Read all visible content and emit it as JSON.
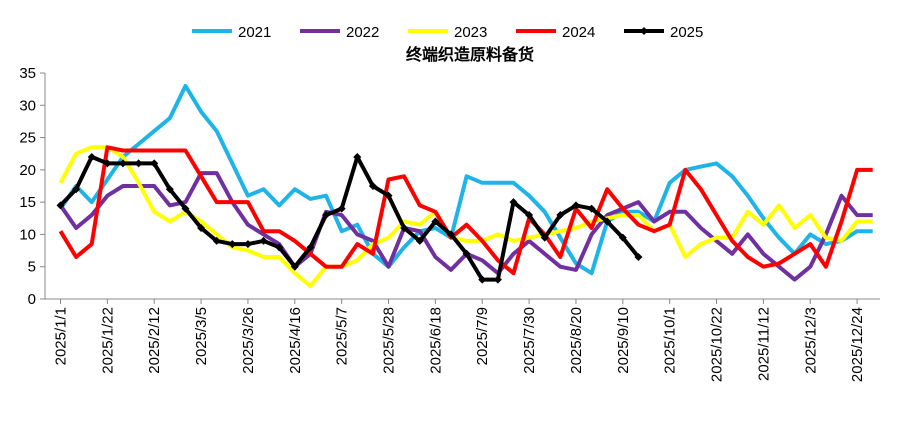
{
  "chart_data": {
    "type": "line",
    "title": "终端织造原料备货",
    "categories": [
      "2025/1/1",
      null,
      null,
      "2025/1/22",
      null,
      null,
      "2025/2/12",
      null,
      null,
      "2025/3/5",
      null,
      null,
      "2025/3/26",
      null,
      null,
      "2025/4/16",
      null,
      null,
      "2025/5/7",
      null,
      null,
      "2025/5/28",
      null,
      null,
      "2025/6/18",
      null,
      null,
      "2025/7/9",
      null,
      null,
      "2025/7/30",
      null,
      null,
      "2025/8/20",
      null,
      null,
      "2025/9/10",
      null,
      null,
      "2025/10/1",
      null,
      null,
      "2025/10/22",
      null,
      null,
      "2025/11/12",
      null,
      null,
      "2025/12/3",
      null,
      null,
      "2025/12/24",
      null
    ],
    "series": [
      {
        "name": "2021",
        "color": "#1EB4E8",
        "values": [
          14,
          17.5,
          15,
          18.5,
          22,
          24,
          26,
          28,
          33,
          29,
          26,
          21,
          16,
          17,
          14.5,
          17,
          15.5,
          16,
          10.5,
          11.5,
          7,
          5,
          8,
          10.5,
          11,
          9.5,
          19,
          18,
          18,
          18,
          16,
          13.5,
          9.5,
          5.5,
          4,
          12,
          13.5,
          13.5,
          12,
          18,
          20,
          20.5,
          21,
          19,
          16,
          12.5,
          9.5,
          7,
          10,
          8.5,
          9,
          10.5,
          10.5
        ]
      },
      {
        "name": "2022",
        "color": "#7030A0",
        "values": [
          14.5,
          11,
          13,
          16,
          17.5,
          17.5,
          17.5,
          14.5,
          15,
          19.5,
          19.5,
          15,
          11.5,
          10,
          8.5,
          5,
          7,
          13.5,
          13,
          10,
          9,
          5,
          11,
          10.5,
          6.5,
          4.5,
          7,
          6,
          4,
          7,
          9,
          7,
          5,
          4.5,
          10,
          13,
          14,
          15,
          12,
          13.5,
          13.5,
          11,
          9,
          7,
          10,
          7,
          5,
          3,
          5,
          10,
          16,
          13,
          13
        ]
      },
      {
        "name": "2023",
        "color": "#FFFF00",
        "values": [
          18,
          22.5,
          23.5,
          23.5,
          22,
          18,
          13.5,
          12,
          13.5,
          12,
          10,
          8,
          7.5,
          6.5,
          6.5,
          4,
          2,
          5,
          5,
          6,
          8.5,
          9.5,
          12,
          11.5,
          13.5,
          9.5,
          9,
          9,
          10,
          9,
          9.5,
          10,
          10.5,
          11,
          12,
          12.5,
          13,
          13,
          10.5,
          11.5,
          6.5,
          8.5,
          9.5,
          9.5,
          13.5,
          11.5,
          14.5,
          11,
          13,
          9.5,
          9,
          12,
          12
        ]
      },
      {
        "name": "2024",
        "color": "#FF0000",
        "values": [
          10.5,
          6.5,
          8.5,
          23.5,
          23,
          23,
          23,
          23,
          23,
          19,
          15,
          15,
          15,
          10.5,
          10.5,
          9,
          7,
          5,
          5,
          8.5,
          7,
          18.5,
          19,
          14.5,
          13.5,
          9.5,
          11.5,
          9,
          6,
          4,
          12.5,
          10,
          6.5,
          14,
          11,
          17,
          14,
          11.5,
          10.5,
          11.5,
          20,
          17,
          13,
          9,
          6.5,
          5,
          5.5,
          7,
          8.5,
          5,
          12,
          20,
          20
        ]
      },
      {
        "name": "2025",
        "color": "#000000",
        "marker": "diamond",
        "values": [
          14.5,
          17,
          22,
          21,
          21,
          21,
          21,
          17,
          14,
          11,
          9,
          8.5,
          8.5,
          9,
          8,
          5,
          8,
          13,
          14,
          22,
          17.5,
          16,
          11,
          9,
          12,
          10,
          7,
          3,
          3,
          15,
          13,
          9.5,
          13,
          14.5,
          14,
          12,
          9.5,
          6.5,
          null,
          null,
          null,
          null,
          null,
          null,
          null,
          null,
          null,
          null,
          null,
          null,
          null,
          null,
          null
        ]
      }
    ],
    "ylim": [
      0,
      35
    ],
    "yticks": [
      0,
      5,
      10,
      15,
      20,
      25,
      30,
      35
    ],
    "grid": false,
    "legend": "top"
  }
}
